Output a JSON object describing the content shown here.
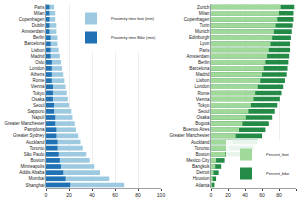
{
  "chart_data": [
    {
      "type": "bar",
      "orientation": "horizontal",
      "stacked": false,
      "grid": true,
      "legend": "upper right",
      "categories": [
        "Paris",
        "Milan",
        "Copenhagen",
        "Dublin",
        "Amsterdam",
        "Berlin",
        "Barcelona",
        "Lisbon",
        "Madrid",
        "Oslo",
        "London",
        "Athens",
        "Rome",
        "Vienna",
        "Tokyo",
        "Osaka",
        "Seoul",
        "Sapporo",
        "Napoli",
        "Greater Manchester",
        "Pamplona",
        "Greater Sydney",
        "Auckland",
        "Toronto",
        "São Paulo",
        "Boston",
        "Minneapolis",
        "Addis Ababa",
        "Mumbai",
        "Shanghai"
      ],
      "series": [
        {
          "name": "Proximity time foot (min)",
          "color": "#9ecae1",
          "values": [
            7,
            8,
            8,
            9,
            9,
            10,
            10,
            11,
            12,
            13,
            14,
            15,
            16,
            17,
            18,
            19,
            20,
            22,
            23,
            25,
            26,
            28,
            30,
            32,
            35,
            38,
            42,
            47,
            55,
            68
          ]
        },
        {
          "name": "Proximity time Bike (min)",
          "color": "#2171b5",
          "values": [
            3,
            3,
            3,
            3,
            3,
            4,
            4,
            4,
            4,
            5,
            5,
            5,
            5,
            6,
            6,
            6,
            7,
            7,
            8,
            8,
            9,
            9,
            10,
            10,
            11,
            12,
            13,
            15,
            17,
            21
          ]
        }
      ],
      "xlim": [
        0,
        100
      ],
      "xticks": [
        0,
        20,
        40,
        60,
        80,
        100
      ]
    },
    {
      "type": "bar",
      "orientation": "horizontal",
      "stacked": false,
      "grid": true,
      "legend": "lower right",
      "categories": [
        "Zurich",
        "Milan",
        "Copenhagen",
        "Turin",
        "Munich",
        "Edinburgh",
        "Lyon",
        "Paris",
        "Amsterdam",
        "Berlin",
        "Barcelona",
        "Madrid",
        "Lisbon",
        "London",
        "Rome",
        "Vienna",
        "Tokyo",
        "Seoul",
        "Osaka",
        "Bogotá",
        "Buenos Aires",
        "Greater Manchester",
        "Auckland",
        "Toronto",
        "Boston",
        "Mexico City",
        "Bangkok",
        "Detroit",
        "Houston",
        "Atlanta"
      ],
      "series": [
        {
          "name": "Percent_foot",
          "color": "#a1d99b",
          "values": [
            82,
            80,
            78,
            76,
            74,
            72,
            70,
            68,
            66,
            64,
            62,
            60,
            58,
            55,
            52,
            50,
            47,
            44,
            41,
            37,
            33,
            29,
            25,
            21,
            17,
            6,
            5,
            3,
            2,
            1
          ]
        },
        {
          "name": "Percent_bike",
          "color": "#238b45",
          "values": [
            98,
            97,
            97,
            96,
            95,
            94,
            93,
            93,
            92,
            91,
            90,
            89,
            87,
            85,
            83,
            81,
            78,
            75,
            72,
            68,
            64,
            60,
            55,
            50,
            44,
            16,
            12,
            9,
            6,
            4
          ]
        }
      ],
      "xlim": [
        0,
        100
      ],
      "xticks": [
        0,
        20,
        40,
        60,
        80,
        100
      ]
    }
  ]
}
